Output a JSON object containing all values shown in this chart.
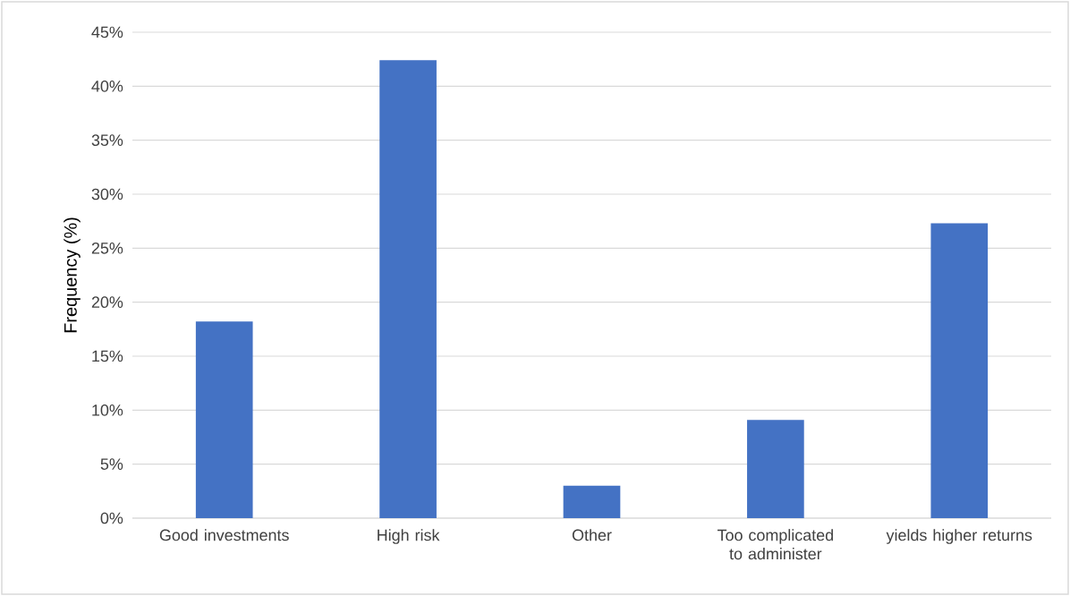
{
  "chart_data": {
    "type": "bar",
    "ylabel": "Frequency (%)",
    "categories": [
      "Good investments",
      "High risk",
      "Other",
      "Too complicated to administer",
      "yields higher returns"
    ],
    "values": [
      18.2,
      42.4,
      3.0,
      9.1,
      27.3
    ],
    "color": "#4472c4",
    "ylim": [
      0,
      45
    ],
    "yticks": [
      {
        "value": 0,
        "label": "0%"
      },
      {
        "value": 5,
        "label": "5%"
      },
      {
        "value": 10,
        "label": "10%"
      },
      {
        "value": 15,
        "label": "15%"
      },
      {
        "value": 20,
        "label": "20%"
      },
      {
        "value": 25,
        "label": "25%"
      },
      {
        "value": 30,
        "label": "30%"
      },
      {
        "value": 35,
        "label": "35%"
      },
      {
        "value": 40,
        "label": "40%"
      },
      {
        "value": 45,
        "label": "45%"
      }
    ],
    "grid": "y"
  }
}
